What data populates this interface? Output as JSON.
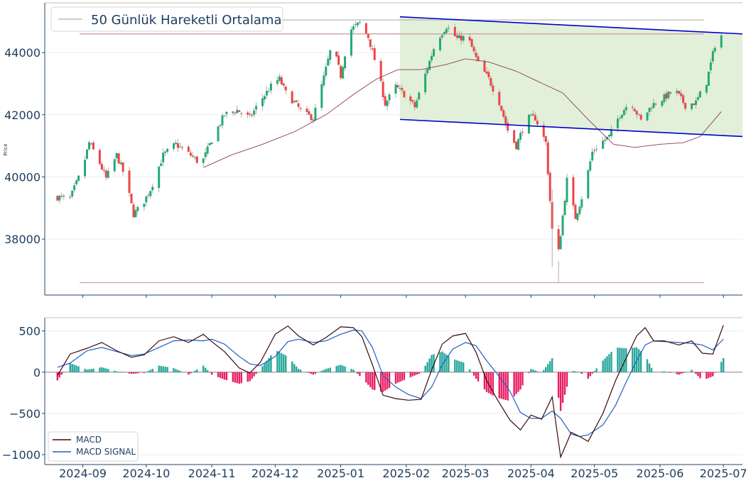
{
  "chart_data": [
    {
      "type": "candlestick",
      "panel": "price",
      "ylabel": "Price",
      "ylim": [
        36200,
        45600
      ],
      "yticks": [
        38000,
        40000,
        42000,
        44000
      ],
      "x_range": [
        "2024-08-14",
        "2025-07-10"
      ],
      "grid": "horizontal",
      "legend": {
        "placement": "top-left",
        "entries": [
          "50 Günlük Hareketli Ortalama"
        ]
      },
      "series": [
        {
          "name": "50 Günlük Hareketli Ortalama",
          "type": "line",
          "color": "#8b3a5a",
          "points": [
            [
              "2024-10-28",
              40300
            ],
            [
              "2024-11-10",
              40700
            ],
            [
              "2024-11-25",
              41050
            ],
            [
              "2024-12-10",
              41450
            ],
            [
              "2024-12-25",
              42000
            ],
            [
              "2025-01-08",
              42700
            ],
            [
              "2025-01-18",
              43150
            ],
            [
              "2025-01-28",
              43450
            ],
            [
              "2025-02-08",
              43450
            ],
            [
              "2025-02-20",
              43620
            ],
            [
              "2025-03-01",
              43800
            ],
            [
              "2025-03-12",
              43700
            ],
            [
              "2025-03-25",
              43400
            ],
            [
              "2025-04-05",
              43050
            ],
            [
              "2025-04-16",
              42700
            ],
            [
              "2025-04-28",
              41850
            ],
            [
              "2025-05-10",
              41050
            ],
            [
              "2025-05-20",
              40950
            ],
            [
              "2025-06-01",
              41050
            ],
            [
              "2025-06-12",
              41100
            ],
            [
              "2025-06-20",
              41300
            ],
            [
              "2025-06-30",
              42100
            ]
          ]
        }
      ],
      "ohlc_points": [
        [
          "2024-08-20",
          39350
        ],
        [
          "2024-08-26",
          39300
        ],
        [
          "2024-09-01",
          40300
        ],
        [
          "2024-09-04",
          41100
        ],
        [
          "2024-09-08",
          40600
        ],
        [
          "2024-09-12",
          39950
        ],
        [
          "2024-09-17",
          40700
        ],
        [
          "2024-09-21",
          40000
        ],
        [
          "2024-09-25",
          38800
        ],
        [
          "2024-09-29",
          39100
        ],
        [
          "2024-10-03",
          39600
        ],
        [
          "2024-10-09",
          40700
        ],
        [
          "2024-10-15",
          41050
        ],
        [
          "2024-10-22",
          40700
        ],
        [
          "2024-10-27",
          40400
        ],
        [
          "2024-11-01",
          41200
        ],
        [
          "2024-11-07",
          42000
        ],
        [
          "2024-11-13",
          42150
        ],
        [
          "2024-11-19",
          41900
        ],
        [
          "2024-11-24",
          42450
        ],
        [
          "2024-11-30",
          43000
        ],
        [
          "2024-12-03",
          43150
        ],
        [
          "2024-12-06",
          42700
        ],
        [
          "2024-12-10",
          42400
        ],
        [
          "2024-12-14",
          42050
        ],
        [
          "2024-12-19",
          41900
        ],
        [
          "2024-12-24",
          43200
        ],
        [
          "2024-12-28",
          44300
        ],
        [
          "2025-01-01",
          43250
        ],
        [
          "2025-01-05",
          44700
        ],
        [
          "2025-01-10",
          44950
        ],
        [
          "2025-01-14",
          44500
        ],
        [
          "2025-01-19",
          43300
        ],
        [
          "2025-01-22",
          42350
        ],
        [
          "2025-01-27",
          42900
        ],
        [
          "2025-02-01",
          42600
        ],
        [
          "2025-02-05",
          42250
        ],
        [
          "2025-02-10",
          43300
        ],
        [
          "2025-02-15",
          44350
        ],
        [
          "2025-02-20",
          44850
        ],
        [
          "2025-02-25",
          44450
        ],
        [
          "2025-03-02",
          44500
        ],
        [
          "2025-03-07",
          43650
        ],
        [
          "2025-03-12",
          43150
        ],
        [
          "2025-03-17",
          42400
        ],
        [
          "2025-03-21",
          41500
        ],
        [
          "2025-03-25",
          41000
        ],
        [
          "2025-03-30",
          41900
        ],
        [
          "2025-04-03",
          41900
        ],
        [
          "2025-04-08",
          41100
        ],
        [
          "2025-04-11",
          38300
        ],
        [
          "2025-04-14",
          37600
        ],
        [
          "2025-04-18",
          39900
        ],
        [
          "2025-04-22",
          38700
        ],
        [
          "2025-04-26",
          39550
        ],
        [
          "2025-04-30",
          40800
        ],
        [
          "2025-05-04",
          41100
        ],
        [
          "2025-05-08",
          41300
        ],
        [
          "2025-05-13",
          42000
        ],
        [
          "2025-05-18",
          42450
        ],
        [
          "2025-05-23",
          41800
        ],
        [
          "2025-05-28",
          42300
        ],
        [
          "2025-06-03",
          42550
        ],
        [
          "2025-06-08",
          42800
        ],
        [
          "2025-06-13",
          42300
        ],
        [
          "2025-06-18",
          42400
        ],
        [
          "2025-06-23",
          43050
        ],
        [
          "2025-06-27",
          44250
        ],
        [
          "2025-06-30",
          44550
        ]
      ],
      "annotations": {
        "trend_channel": {
          "color": "#0000cc",
          "fill": "#e2f0da",
          "upper": [
            [
              "2025-01-29",
              45150
            ],
            [
              "2025-07-10",
              44600
            ]
          ],
          "lower": [
            [
              "2025-01-29",
              41850
            ],
            [
              "2025-07-10",
              41300
            ]
          ]
        },
        "horizontal_levels": [
          45050,
          44600,
          36600
        ]
      }
    },
    {
      "type": "macd",
      "panel": "indicator",
      "ylim": [
        -1120,
        660
      ],
      "yticks": [
        -1000,
        -500,
        0,
        500
      ],
      "xticks": [
        "2024-09",
        "2024-10",
        "2024-11",
        "2024-12",
        "2025-01",
        "2025-02",
        "2025-03",
        "2025-04",
        "2025-05",
        "2025-06",
        "2025-07"
      ],
      "legend": {
        "placement": "bottom-left",
        "entries": [
          "MACD",
          "MACD SIGNAL"
        ]
      },
      "series": [
        {
          "name": "MACD",
          "color": "#3a0a0a",
          "points": [
            [
              "2024-08-20",
              -40
            ],
            [
              "2024-08-26",
              220
            ],
            [
              "2024-09-03",
              290
            ],
            [
              "2024-09-10",
              360
            ],
            [
              "2024-09-17",
              260
            ],
            [
              "2024-09-24",
              180
            ],
            [
              "2024-09-30",
              210
            ],
            [
              "2024-10-07",
              380
            ],
            [
              "2024-10-14",
              430
            ],
            [
              "2024-10-21",
              360
            ],
            [
              "2024-10-28",
              460
            ],
            [
              "2024-11-01",
              370
            ],
            [
              "2024-11-07",
              250
            ],
            [
              "2024-11-14",
              50
            ],
            [
              "2024-11-19",
              -10
            ],
            [
              "2024-11-24",
              120
            ],
            [
              "2024-12-01",
              460
            ],
            [
              "2024-12-07",
              560
            ],
            [
              "2024-12-12",
              440
            ],
            [
              "2024-12-19",
              330
            ],
            [
              "2024-12-25",
              420
            ],
            [
              "2025-01-01",
              550
            ],
            [
              "2025-01-07",
              540
            ],
            [
              "2025-01-11",
              430
            ],
            [
              "2025-01-16",
              90
            ],
            [
              "2025-01-21",
              -280
            ],
            [
              "2025-01-27",
              -320
            ],
            [
              "2025-02-02",
              -340
            ],
            [
              "2025-02-08",
              -330
            ],
            [
              "2025-02-13",
              30
            ],
            [
              "2025-02-18",
              340
            ],
            [
              "2025-02-23",
              440
            ],
            [
              "2025-03-01",
              470
            ],
            [
              "2025-03-06",
              240
            ],
            [
              "2025-03-11",
              -100
            ],
            [
              "2025-03-16",
              -330
            ],
            [
              "2025-03-22",
              -580
            ],
            [
              "2025-03-27",
              -700
            ],
            [
              "2025-04-01",
              -520
            ],
            [
              "2025-04-06",
              -570
            ],
            [
              "2025-04-11",
              -300
            ],
            [
              "2025-04-15",
              -1030
            ],
            [
              "2025-04-20",
              -730
            ],
            [
              "2025-04-24",
              -780
            ],
            [
              "2025-04-28",
              -840
            ],
            [
              "2025-05-05",
              -500
            ],
            [
              "2025-05-11",
              -100
            ],
            [
              "2025-05-16",
              170
            ],
            [
              "2025-05-21",
              440
            ],
            [
              "2025-05-25",
              540
            ],
            [
              "2025-05-29",
              380
            ],
            [
              "2025-06-03",
              380
            ],
            [
              "2025-06-10",
              330
            ],
            [
              "2025-06-16",
              380
            ],
            [
              "2025-06-21",
              230
            ],
            [
              "2025-06-26",
              220
            ],
            [
              "2025-07-01",
              570
            ]
          ]
        },
        {
          "name": "MACD SIGNAL",
          "color": "#1f5ec5",
          "points": [
            [
              "2024-08-20",
              60
            ],
            [
              "2024-08-26",
              110
            ],
            [
              "2024-09-03",
              260
            ],
            [
              "2024-09-10",
              300
            ],
            [
              "2024-09-17",
              250
            ],
            [
              "2024-09-24",
              200
            ],
            [
              "2024-09-30",
              220
            ],
            [
              "2024-10-07",
              300
            ],
            [
              "2024-10-14",
              380
            ],
            [
              "2024-10-21",
              390
            ],
            [
              "2024-10-28",
              380
            ],
            [
              "2024-11-01",
              400
            ],
            [
              "2024-11-07",
              340
            ],
            [
              "2024-11-14",
              190
            ],
            [
              "2024-11-19",
              100
            ],
            [
              "2024-11-24",
              80
            ],
            [
              "2024-12-01",
              190
            ],
            [
              "2024-12-07",
              370
            ],
            [
              "2024-12-12",
              400
            ],
            [
              "2024-12-19",
              360
            ],
            [
              "2024-12-25",
              380
            ],
            [
              "2025-01-01",
              460
            ],
            [
              "2025-01-07",
              510
            ],
            [
              "2025-01-11",
              500
            ],
            [
              "2025-01-16",
              300
            ],
            [
              "2025-01-21",
              -40
            ],
            [
              "2025-01-27",
              -180
            ],
            [
              "2025-02-02",
              -270
            ],
            [
              "2025-02-08",
              -320
            ],
            [
              "2025-02-13",
              -180
            ],
            [
              "2025-02-18",
              90
            ],
            [
              "2025-02-23",
              280
            ],
            [
              "2025-03-01",
              360
            ],
            [
              "2025-03-06",
              320
            ],
            [
              "2025-03-11",
              140
            ],
            [
              "2025-03-16",
              -20
            ],
            [
              "2025-03-22",
              -230
            ],
            [
              "2025-03-27",
              -490
            ],
            [
              "2025-04-01",
              -560
            ],
            [
              "2025-04-06",
              -560
            ],
            [
              "2025-04-11",
              -470
            ],
            [
              "2025-04-15",
              -560
            ],
            [
              "2025-04-20",
              -750
            ],
            [
              "2025-04-24",
              -780
            ],
            [
              "2025-04-28",
              -760
            ],
            [
              "2025-05-05",
              -640
            ],
            [
              "2025-05-11",
              -400
            ],
            [
              "2025-05-16",
              -120
            ],
            [
              "2025-05-21",
              140
            ],
            [
              "2025-05-25",
              330
            ],
            [
              "2025-05-29",
              380
            ],
            [
              "2025-06-03",
              370
            ],
            [
              "2025-06-10",
              360
            ],
            [
              "2025-06-16",
              350
            ],
            [
              "2025-06-21",
              330
            ],
            [
              "2025-06-26",
              270
            ],
            [
              "2025-07-01",
              400
            ]
          ]
        }
      ]
    }
  ]
}
